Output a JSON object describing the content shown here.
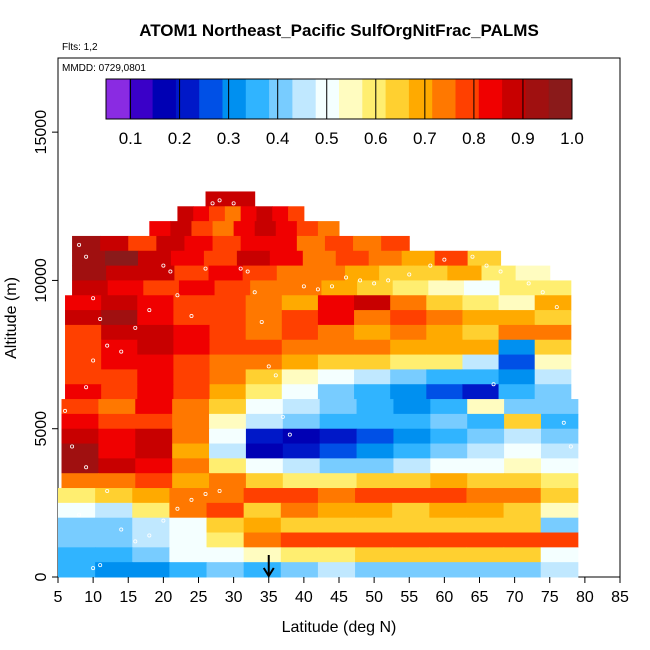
{
  "chart_data": {
    "type": "heatmap",
    "title": "ATOM1 Northeast_Pacific SulfOrgNitFrac_PALMS",
    "flights_label": "Flts: 1,2",
    "date_label": "MMDD: 0729,0801",
    "xlabel": "Latitude (deg N)",
    "ylabel": "Altitude (m)",
    "xlim": [
      5,
      85
    ],
    "ylim": [
      0,
      17500
    ],
    "x_ticks": [
      "5",
      "10",
      "15",
      "20",
      "25",
      "30",
      "35",
      "40",
      "45",
      "50",
      "55",
      "60",
      "65",
      "70",
      "75",
      "80",
      "85"
    ],
    "y_ticks": [
      "0",
      "5000",
      "10000",
      "15000"
    ],
    "colorbar": {
      "ticks": [
        "0.1",
        "0.2",
        "0.3",
        "0.4",
        "0.5",
        "0.6",
        "0.7",
        "0.8",
        "0.9",
        "1.0"
      ],
      "range": [
        0.05,
        1.0
      ],
      "colors": [
        "#8a2be2",
        "#3a00c8",
        "#0000b4",
        "#0018c8",
        "#0050e6",
        "#0090f0",
        "#30b4ff",
        "#78ccff",
        "#c0e8ff",
        "#f4ffff",
        "#fffcc0",
        "#ffee70",
        "#ffd030",
        "#ffaa00",
        "#ff7800",
        "#ff4000",
        "#f00000",
        "#c80000",
        "#a01010",
        "#8a1a1a"
      ]
    },
    "arrow_marker_lat": 35,
    "rows": [
      {
        "alt": [
          12500,
          13000
        ],
        "x0": 26,
        "x1": 33,
        "v": [
          0.88
        ]
      },
      {
        "alt": [
          12000,
          12500
        ],
        "x0": 22,
        "x1": 40,
        "v": [
          0.9,
          0.85,
          0.8,
          0.72,
          0.85,
          0.9,
          0.85,
          0.8
        ]
      },
      {
        "alt": [
          11500,
          12000
        ],
        "x0": 18,
        "x1": 45,
        "v": [
          0.85,
          0.9,
          0.8,
          0.75,
          0.85,
          0.9,
          0.85,
          0.8,
          0.75
        ]
      },
      {
        "alt": [
          11000,
          11500
        ],
        "x0": 7,
        "x1": 55,
        "v": [
          0.92,
          0.88,
          0.8,
          0.9,
          0.85,
          0.78,
          0.85,
          0.82,
          0.75,
          0.8,
          0.72,
          0.78
        ]
      },
      {
        "alt": [
          10500,
          11000
        ],
        "x0": 7,
        "x1": 68,
        "v": [
          0.95,
          0.97,
          0.9,
          0.85,
          0.8,
          0.88,
          0.82,
          0.75,
          0.8,
          0.72,
          0.7,
          0.78,
          0.65
        ]
      },
      {
        "alt": [
          10000,
          10500
        ],
        "x0": 7,
        "x1": 75,
        "v": [
          0.92,
          0.9,
          0.87,
          0.8,
          0.82,
          0.78,
          0.72,
          0.75,
          0.7,
          0.65,
          0.62,
          0.7,
          0.6,
          0.55
        ]
      },
      {
        "alt": [
          9500,
          10000
        ],
        "x0": 7,
        "x1": 78,
        "v": [
          0.88,
          0.85,
          0.8,
          0.83,
          0.78,
          0.72,
          0.75,
          0.7,
          0.62,
          0.58,
          0.55,
          0.5,
          0.58,
          0.6
        ]
      },
      {
        "alt": [
          9000,
          9500
        ],
        "x0": 6,
        "x1": 78,
        "v": [
          0.85,
          0.9,
          0.82,
          0.78,
          0.8,
          0.75,
          0.7,
          0.85,
          0.88,
          0.72,
          0.62,
          0.6,
          0.55,
          0.7
        ]
      },
      {
        "alt": [
          8500,
          9000
        ],
        "x0": 6,
        "x1": 78,
        "v": [
          0.88,
          0.92,
          0.85,
          0.8,
          0.78,
          0.76,
          0.8,
          0.82,
          0.75,
          0.78,
          0.72,
          0.68,
          0.7,
          0.66
        ]
      },
      {
        "alt": [
          8000,
          8500
        ],
        "x0": 6,
        "x1": 78,
        "v": [
          0.8,
          0.86,
          0.9,
          0.82,
          0.78,
          0.75,
          0.77,
          0.72,
          0.7,
          0.72,
          0.68,
          0.65,
          0.75,
          0.72
        ]
      },
      {
        "alt": [
          7500,
          8000
        ],
        "x0": 6,
        "x1": 78,
        "v": [
          0.8,
          0.82,
          0.88,
          0.85,
          0.8,
          0.78,
          0.75,
          0.72,
          0.74,
          0.7,
          0.68,
          0.7,
          0.3,
          0.62
        ]
      },
      {
        "alt": [
          7000,
          7500
        ],
        "x0": 6,
        "x1": 78,
        "v": [
          0.78,
          0.82,
          0.85,
          0.8,
          0.76,
          0.72,
          0.7,
          0.66,
          0.62,
          0.6,
          0.58,
          0.45,
          0.28,
          0.55
        ]
      },
      {
        "alt": [
          6500,
          7000
        ],
        "x0": 6,
        "x1": 78,
        "v": [
          0.8,
          0.78,
          0.82,
          0.78,
          0.72,
          0.62,
          0.55,
          0.5,
          0.45,
          0.4,
          0.38,
          0.35,
          0.3,
          0.45
        ]
      },
      {
        "alt": [
          6000,
          6500
        ],
        "x0": 6,
        "x1": 78,
        "v": [
          0.82,
          0.8,
          0.85,
          0.8,
          0.7,
          0.58,
          0.5,
          0.42,
          0.38,
          0.32,
          0.25,
          0.2,
          0.35,
          0.4
        ]
      },
      {
        "alt": [
          5500,
          6000
        ],
        "x0": 5.5,
        "x1": 79,
        "v": [
          0.8,
          0.76,
          0.82,
          0.72,
          0.62,
          0.5,
          0.45,
          0.4,
          0.36,
          0.32,
          0.38,
          0.55,
          0.4,
          0.42
        ]
      },
      {
        "alt": [
          5000,
          5500
        ],
        "x0": 5.5,
        "x1": 79,
        "v": [
          0.85,
          0.8,
          0.78,
          0.72,
          0.55,
          0.45,
          0.4,
          0.38,
          0.35,
          0.38,
          0.42,
          0.38,
          0.62,
          0.38
        ]
      },
      {
        "alt": [
          4500,
          5000
        ],
        "x0": 5.5,
        "x1": 79,
        "v": [
          0.9,
          0.82,
          0.86,
          0.75,
          0.48,
          0.2,
          0.18,
          0.2,
          0.25,
          0.3,
          0.35,
          0.4,
          0.45,
          0.42
        ]
      },
      {
        "alt": [
          4000,
          4500
        ],
        "x0": 5.5,
        "x1": 79,
        "v": [
          0.92,
          0.85,
          0.88,
          0.7,
          0.45,
          0.15,
          0.2,
          0.28,
          0.32,
          0.38,
          0.4,
          0.45,
          0.5,
          0.45
        ]
      },
      {
        "alt": [
          3500,
          4000
        ],
        "x0": 5.5,
        "x1": 79,
        "v": [
          0.95,
          0.88,
          0.82,
          0.72,
          0.6,
          0.48,
          0.45,
          0.4,
          0.42,
          0.45,
          0.48,
          0.52,
          0.56,
          0.5
        ]
      },
      {
        "alt": [
          3000,
          3500
        ],
        "x0": 5.5,
        "x1": 79,
        "v": [
          0.72,
          0.76,
          0.8,
          0.7,
          0.75,
          0.62,
          0.58,
          0.6,
          0.62,
          0.65,
          0.68,
          0.66,
          0.62,
          0.6
        ]
      },
      {
        "alt": [
          2500,
          3000
        ],
        "x0": 5,
        "x1": 79,
        "v": [
          0.58,
          0.62,
          0.7,
          0.75,
          0.72,
          0.8,
          0.78,
          0.76,
          0.78,
          0.8,
          0.78,
          0.76,
          0.75,
          0.62
        ]
      },
      {
        "alt": [
          2000,
          2500
        ],
        "x0": 5,
        "x1": 79,
        "v": [
          0.5,
          0.45,
          0.6,
          0.72,
          0.78,
          0.65,
          0.75,
          0.68,
          0.7,
          0.66,
          0.68,
          0.67,
          0.66,
          0.55
        ]
      },
      {
        "alt": [
          1500,
          2000
        ],
        "x0": 5,
        "x1": 79,
        "v": [
          0.42,
          0.4,
          0.45,
          0.5,
          0.62,
          0.7,
          0.66,
          0.65,
          0.66,
          0.65,
          0.65,
          0.65,
          0.64,
          0.4
        ]
      },
      {
        "alt": [
          1000,
          1500
        ],
        "x0": 5,
        "x1": 79,
        "v": [
          0.4,
          0.42,
          0.45,
          0.52,
          0.6,
          0.75,
          0.8,
          0.78,
          0.78,
          0.78,
          0.78,
          0.78,
          0.78,
          0.78
        ]
      },
      {
        "alt": [
          500,
          1000
        ],
        "x0": 5,
        "x1": 79,
        "v": [
          0.38,
          0.35,
          0.42,
          0.48,
          0.5,
          0.55,
          0.58,
          0.6,
          0.62,
          0.62,
          0.62,
          0.62,
          0.62,
          0.5
        ]
      },
      {
        "alt": [
          0,
          500
        ],
        "x0": 5,
        "x1": 79,
        "v": [
          0.35,
          0.3,
          0.32,
          0.35,
          0.4,
          0.38,
          0.42,
          0.45,
          0.42,
          0.42,
          0.42,
          0.42,
          0.42,
          0.45
        ]
      }
    ],
    "sample_points": [
      [
        8,
        11200
      ],
      [
        9,
        10800
      ],
      [
        10,
        9400
      ],
      [
        11,
        8700
      ],
      [
        12,
        7800
      ],
      [
        14,
        7600
      ],
      [
        16,
        8400
      ],
      [
        18,
        9000
      ],
      [
        20,
        10500
      ],
      [
        21,
        10300
      ],
      [
        22,
        9500
      ],
      [
        24,
        8800
      ],
      [
        26,
        10400
      ],
      [
        27,
        12600
      ],
      [
        28,
        12700
      ],
      [
        30,
        12600
      ],
      [
        31,
        10400
      ],
      [
        32,
        10300
      ],
      [
        33,
        9600
      ],
      [
        34,
        8600
      ],
      [
        35,
        7100
      ],
      [
        36,
        6800
      ],
      [
        37,
        5400
      ],
      [
        38,
        4800
      ],
      [
        40,
        9800
      ],
      [
        42,
        9700
      ],
      [
        44,
        9800
      ],
      [
        46,
        10100
      ],
      [
        48,
        10000
      ],
      [
        50,
        9900
      ],
      [
        52,
        10000
      ],
      [
        55,
        10200
      ],
      [
        58,
        10500
      ],
      [
        60,
        10700
      ],
      [
        62,
        11100
      ],
      [
        64,
        10800
      ],
      [
        66,
        10500
      ],
      [
        67,
        6500
      ],
      [
        68,
        10300
      ],
      [
        70,
        10700
      ],
      [
        72,
        9900
      ],
      [
        74,
        9600
      ],
      [
        76,
        9100
      ],
      [
        77,
        5200
      ],
      [
        78,
        4400
      ],
      [
        12,
        2900
      ],
      [
        14,
        1600
      ],
      [
        16,
        1200
      ],
      [
        18,
        1400
      ],
      [
        20,
        1900
      ],
      [
        22,
        2300
      ],
      [
        24,
        2600
      ],
      [
        26,
        2800
      ],
      [
        28,
        2900
      ],
      [
        10,
        300
      ],
      [
        11,
        400
      ],
      [
        8,
        2100
      ],
      [
        9,
        3700
      ],
      [
        7,
        4400
      ],
      [
        6,
        5600
      ],
      [
        9,
        6400
      ],
      [
        10,
        7300
      ]
    ]
  }
}
